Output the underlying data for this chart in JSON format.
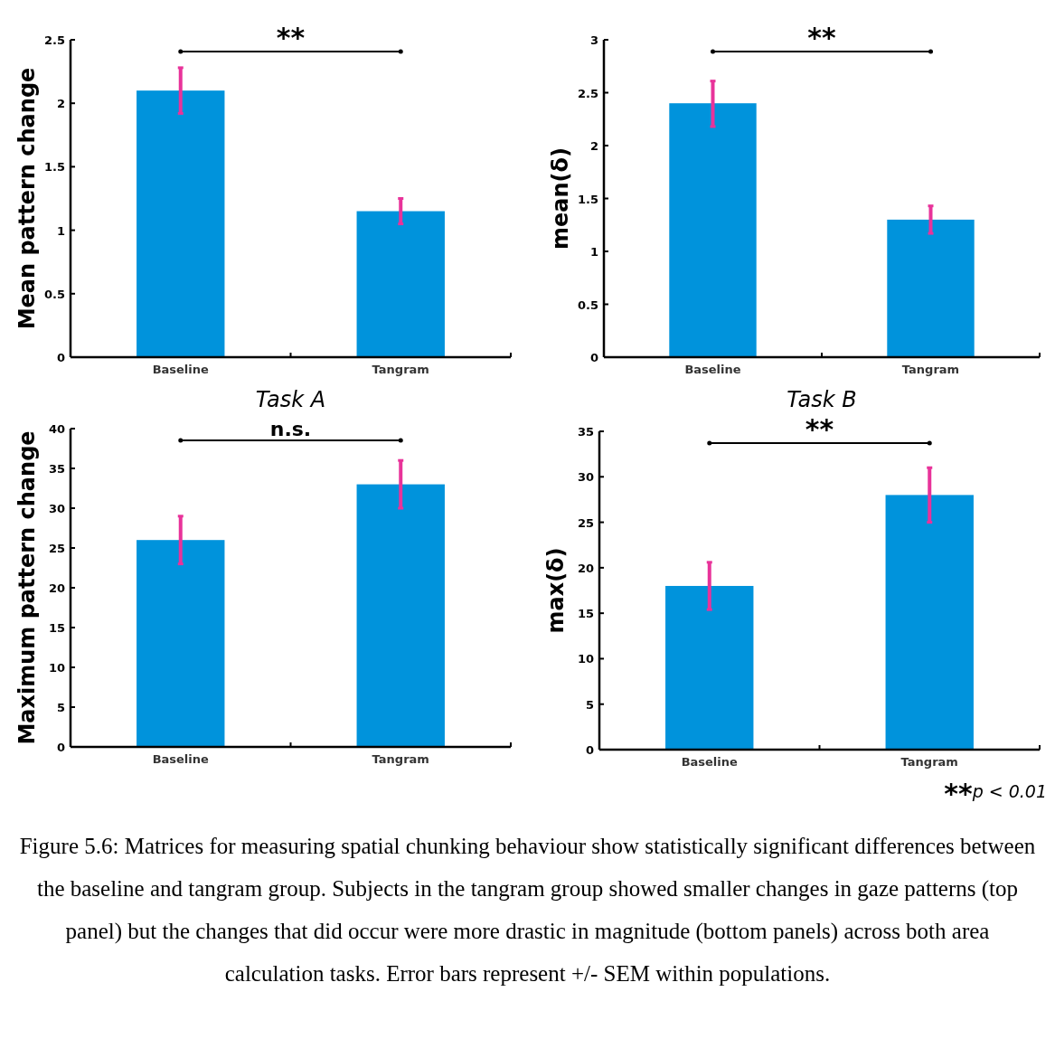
{
  "chart_data": [
    {
      "type": "bar",
      "categories": [
        "Baseline",
        "Tangram"
      ],
      "values": [
        2.1,
        1.15
      ],
      "errors": [
        [
          1.92,
          2.28
        ],
        [
          1.05,
          1.25
        ]
      ],
      "color": "#0093dc",
      "ylim": [
        0,
        2.5
      ],
      "yticks": [
        0,
        0.5,
        1,
        1.5,
        2,
        2.5
      ],
      "ylabel": "Mean pattern change",
      "xlabel": "Task A",
      "annotations": [
        "**"
      ]
    },
    {
      "type": "bar",
      "categories": [
        "Baseline",
        "Tangram"
      ],
      "values": [
        2.4,
        1.3
      ],
      "errors": [
        [
          2.18,
          2.61
        ],
        [
          1.17,
          1.43
        ]
      ],
      "color": "#0093dc",
      "ylim": [
        0,
        3
      ],
      "yticks": [
        0,
        0.5,
        1,
        1.5,
        2,
        2.5,
        3
      ],
      "ylabel": "mean(δ)",
      "xlabel": "Task B",
      "annotations": [
        "**"
      ]
    },
    {
      "type": "bar",
      "categories": [
        "Baseline",
        "Tangram"
      ],
      "values": [
        26,
        33
      ],
      "errors": [
        [
          23,
          29
        ],
        [
          30,
          36
        ]
      ],
      "color": "#0093dc",
      "ylim": [
        0,
        40
      ],
      "yticks": [
        0,
        5,
        10,
        15,
        20,
        25,
        30,
        35,
        40
      ],
      "ylabel": "Maximum pattern change",
      "annotations": [
        "n.s."
      ]
    },
    {
      "type": "bar",
      "categories": [
        "Baseline",
        "Tangram"
      ],
      "values": [
        18,
        28
      ],
      "errors": [
        [
          15.4,
          20.6
        ],
        [
          25,
          31
        ]
      ],
      "color": "#0093dc",
      "ylim": [
        0,
        35
      ],
      "yticks": [
        0,
        5,
        10,
        15,
        20,
        25,
        30,
        35
      ],
      "ylabel": "max(δ)",
      "annotations": [
        "**",
        "**p < 0.01",
        "Figure 5.6: Matrices for measuring spatial chunking behaviour show statistically significant differences between the baseline and tangram group. Subjects in the tangram group showed smaller changes in gaze patterns (top panel) but the changes that did occur were more drastic in magnitude (bottom panels) across both area calculation tasks. Error bars represent +/- SEM within populations."
      ]
    }
  ]
}
